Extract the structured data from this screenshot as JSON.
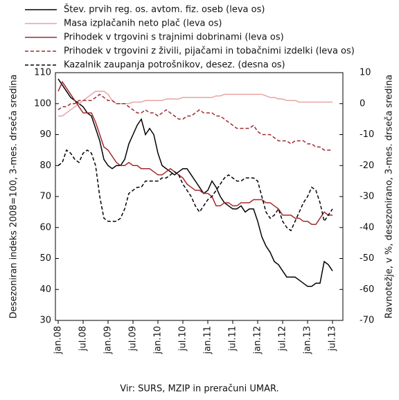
{
  "chart_data": {
    "type": "line",
    "y_label": "Desezoniran indeks 2008=100, 3-mes. drseča sredina",
    "y2_label": "Ravnotežje, v %, desezonirano, 3-mes. drseča sredina",
    "source": "Vir: SURS, MZIP in preračuni UMAR.",
    "categories": [
      "jan.08",
      null,
      null,
      null,
      null,
      null,
      "jul.08",
      null,
      null,
      null,
      null,
      null,
      "jan.09",
      null,
      null,
      null,
      null,
      null,
      "jul.09",
      null,
      null,
      null,
      null,
      null,
      "jan.10",
      null,
      null,
      null,
      null,
      null,
      "jul.10",
      null,
      null,
      null,
      null,
      null,
      "jan.11",
      null,
      null,
      null,
      null,
      null,
      "jul.11",
      null,
      null,
      null,
      null,
      null,
      "jan.12",
      null,
      null,
      null,
      null,
      null,
      "jul.12",
      null,
      null,
      null,
      null,
      null,
      "jan.13",
      null,
      null,
      null,
      null,
      null,
      "jul.13"
    ],
    "ylim": [
      30,
      110
    ],
    "yticks": [
      30,
      40,
      50,
      60,
      70,
      80,
      90,
      100,
      110
    ],
    "y2lim": [
      -70,
      10
    ],
    "y2ticks": [
      -70,
      -60,
      -50,
      -40,
      -30,
      -20,
      -10,
      0,
      10
    ],
    "series": [
      {
        "name": "Štev. prvih reg. os. avtom. fiz. oseb (leva os)",
        "color": "#000000",
        "line_style": "solid",
        "values": [
          108,
          106,
          104,
          102,
          101,
          100,
          99,
          97,
          96,
          92,
          88,
          82,
          80,
          79,
          80,
          80,
          82,
          87,
          90,
          93,
          95,
          90,
          92,
          90,
          84,
          80,
          79,
          78,
          77,
          78,
          79,
          79,
          77,
          75,
          73,
          71,
          72,
          75,
          73,
          70,
          68,
          67,
          66,
          66,
          67,
          65,
          66,
          66,
          62,
          57,
          54,
          52,
          49,
          48,
          46,
          44,
          44,
          44,
          43,
          42,
          41,
          41,
          42,
          42,
          49,
          48,
          46
        ]
      },
      {
        "name": "Masa izplačanih neto plač (leva os)",
        "color": "#e8a3a3",
        "line_style": "solid",
        "values": [
          96,
          96,
          97,
          98,
          99,
          100,
          101,
          102,
          103,
          104,
          104,
          104,
          103,
          101,
          100,
          100,
          100,
          100,
          100.5,
          100.5,
          100.5,
          101,
          101,
          101,
          101,
          101,
          101.5,
          101.5,
          101.5,
          101.5,
          102,
          102,
          102,
          102,
          102,
          102,
          102,
          102,
          102.5,
          102.5,
          103,
          103,
          103,
          103,
          103,
          103,
          103,
          103,
          103,
          103,
          102.5,
          102,
          102,
          101.5,
          101.5,
          101,
          101,
          101,
          100.5,
          100.5,
          100.5,
          100.5,
          100.5,
          100.5,
          100.5,
          100.5,
          100.5
        ]
      },
      {
        "name": "Prihodek v trgovini s trajnimi dobrinami (leva os)",
        "color": "#a0282d",
        "line_style": "solid",
        "values": [
          104,
          107,
          105,
          103,
          101,
          99,
          97,
          97,
          97,
          94,
          90,
          86,
          85,
          83,
          81,
          80,
          80,
          81,
          80,
          80,
          79,
          79,
          79,
          78,
          77,
          77,
          78,
          79,
          78,
          77,
          76,
          74,
          73,
          72,
          72,
          71,
          71,
          70,
          67,
          67,
          68,
          68,
          67,
          67,
          68,
          68,
          68,
          69,
          69,
          69,
          68,
          68,
          67,
          66,
          64,
          64,
          64,
          63,
          63,
          62,
          62,
          61,
          61,
          63,
          65,
          64,
          64
        ]
      },
      {
        "name": "Prihodek v trgovini z živili, pijačami in tobačnimi izdelki (leva os)",
        "color": "#a0282d",
        "line_style": "dashed",
        "values": [
          98,
          99,
          99,
          100,
          100,
          101,
          101,
          101,
          101,
          102,
          103,
          102,
          101,
          101,
          100,
          100,
          100,
          99,
          98,
          97,
          97,
          98,
          97,
          97,
          96,
          97,
          98,
          97,
          96,
          95,
          95,
          96,
          96,
          97,
          98,
          97,
          97,
          97,
          96,
          96,
          95,
          94,
          93,
          92,
          92,
          92,
          92,
          93,
          91,
          90,
          90,
          90,
          89,
          88,
          88,
          88,
          87,
          88,
          88,
          88,
          87,
          87,
          86,
          86,
          85,
          85,
          85
        ]
      },
      {
        "name": "Kazalnik zaupanja potrošnikov, desez. (desna os)",
        "color": "#000000",
        "line_style": "dashed",
        "axis": "y2",
        "values": [
          -20,
          -19,
          -15,
          -16,
          -18,
          -19,
          -16,
          -15,
          -16,
          -20,
          -30,
          -37,
          -38,
          -38,
          -38,
          -37,
          -34,
          -29,
          -28,
          -27,
          -27,
          -25,
          -25,
          -25,
          -25,
          -24,
          -24,
          -23,
          -22,
          -23,
          -26,
          -28,
          -30,
          -33,
          -35,
          -33,
          -31,
          -30,
          -28,
          -26,
          -24,
          -23,
          -24,
          -25,
          -25,
          -24,
          -24,
          -24,
          -25,
          -30,
          -35,
          -37,
          -36,
          -34,
          -38,
          -40,
          -41,
          -38,
          -35,
          -32,
          -30,
          -27,
          -28,
          -32,
          -38,
          -36,
          -34
        ]
      }
    ]
  }
}
